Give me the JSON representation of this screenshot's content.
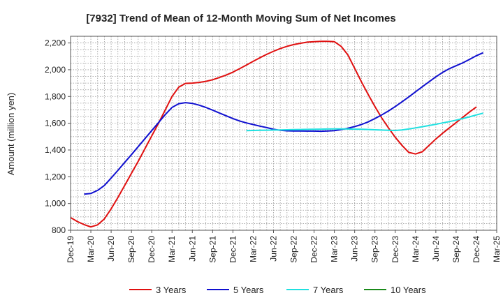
{
  "chart_data": {
    "type": "line",
    "title": "[7932]  Trend of Mean of 12-Month Moving Sum of Net Incomes",
    "xlabel": "",
    "ylabel": "Amount (million yen)",
    "ylim": [
      800,
      2250
    ],
    "yticks": [
      800,
      1000,
      1200,
      1400,
      1600,
      1800,
      2000,
      2200
    ],
    "ytick_labels": [
      "800",
      "1,000",
      "1,200",
      "1,400",
      "1,600",
      "1,800",
      "2,000",
      "2,200"
    ],
    "xtick_labels": [
      "Dec-19",
      "Mar-20",
      "Jun-20",
      "Sep-20",
      "Dec-20",
      "Mar-21",
      "Jun-21",
      "Sep-21",
      "Dec-21",
      "Mar-22",
      "Jun-22",
      "Sep-22",
      "Dec-22",
      "Mar-23",
      "Jun-23",
      "Sep-23",
      "Dec-23",
      "Mar-24",
      "Jun-24",
      "Sep-24",
      "Dec-24",
      "Mar-25"
    ],
    "grid": true,
    "legend_position": "bottom",
    "series": [
      {
        "name": "3 Years",
        "color": "#e01010",
        "points": [
          [
            "Dec-19",
            895
          ],
          [
            "Jan-20",
            865
          ],
          [
            "Feb-20",
            842
          ],
          [
            "Mar-20",
            825
          ],
          [
            "Apr-20",
            840
          ],
          [
            "May-20",
            885
          ],
          [
            "Jun-20",
            960
          ],
          [
            "Jul-20",
            1045
          ],
          [
            "Aug-20",
            1135
          ],
          [
            "Sep-20",
            1225
          ],
          [
            "Oct-20",
            1315
          ],
          [
            "Nov-20",
            1410
          ],
          [
            "Dec-20",
            1505
          ],
          [
            "Jan-21",
            1600
          ],
          [
            "Feb-21",
            1700
          ],
          [
            "Mar-21",
            1800
          ],
          [
            "Apr-21",
            1870
          ],
          [
            "May-21",
            1898
          ],
          [
            "Jun-21",
            1900
          ],
          [
            "Jul-21",
            1905
          ],
          [
            "Aug-21",
            1913
          ],
          [
            "Sep-21",
            1925
          ],
          [
            "Oct-21",
            1942
          ],
          [
            "Nov-21",
            1960
          ],
          [
            "Dec-21",
            1982
          ],
          [
            "Jan-22",
            2008
          ],
          [
            "Feb-22",
            2035
          ],
          [
            "Mar-22",
            2063
          ],
          [
            "Apr-22",
            2090
          ],
          [
            "May-22",
            2115
          ],
          [
            "Jun-22",
            2138
          ],
          [
            "Jul-22",
            2158
          ],
          [
            "Aug-22",
            2175
          ],
          [
            "Sep-22",
            2188
          ],
          [
            "Oct-22",
            2198
          ],
          [
            "Nov-22",
            2206
          ],
          [
            "Dec-22",
            2210
          ],
          [
            "Jan-23",
            2212
          ],
          [
            "Feb-23",
            2212
          ],
          [
            "Mar-23",
            2210
          ],
          [
            "Apr-23",
            2175
          ],
          [
            "May-23",
            2110
          ],
          [
            "Jun-23",
            2010
          ],
          [
            "Jul-23",
            1910
          ],
          [
            "Aug-23",
            1815
          ],
          [
            "Sep-23",
            1725
          ],
          [
            "Oct-23",
            1640
          ],
          [
            "Nov-23",
            1565
          ],
          [
            "Dec-23",
            1495
          ],
          [
            "Jan-24",
            1435
          ],
          [
            "Feb-24",
            1382
          ],
          [
            "Mar-24",
            1370
          ],
          [
            "Apr-24",
            1387
          ],
          [
            "May-24",
            1435
          ],
          [
            "Jun-24",
            1482
          ],
          [
            "Jul-24",
            1525
          ],
          [
            "Aug-24",
            1565
          ],
          [
            "Sep-24",
            1605
          ],
          [
            "Oct-24",
            1645
          ],
          [
            "Nov-24",
            1685
          ],
          [
            "Dec-24",
            1722
          ]
        ]
      },
      {
        "name": "5 Years",
        "color": "#1010d0",
        "points": [
          [
            "Feb-20",
            1070
          ],
          [
            "Mar-20",
            1075
          ],
          [
            "Apr-20",
            1098
          ],
          [
            "May-20",
            1135
          ],
          [
            "Jun-20",
            1190
          ],
          [
            "Jul-20",
            1248
          ],
          [
            "Aug-20",
            1307
          ],
          [
            "Sep-20",
            1365
          ],
          [
            "Oct-20",
            1425
          ],
          [
            "Nov-20",
            1485
          ],
          [
            "Dec-20",
            1545
          ],
          [
            "Jan-21",
            1605
          ],
          [
            "Feb-21",
            1665
          ],
          [
            "Mar-21",
            1718
          ],
          [
            "Apr-21",
            1746
          ],
          [
            "May-21",
            1754
          ],
          [
            "Jun-21",
            1748
          ],
          [
            "Jul-21",
            1735
          ],
          [
            "Aug-21",
            1718
          ],
          [
            "Sep-21",
            1698
          ],
          [
            "Oct-21",
            1677
          ],
          [
            "Nov-21",
            1656
          ],
          [
            "Dec-21",
            1635
          ],
          [
            "Jan-22",
            1617
          ],
          [
            "Feb-22",
            1602
          ],
          [
            "Mar-22",
            1590
          ],
          [
            "Apr-22",
            1578
          ],
          [
            "May-22",
            1567
          ],
          [
            "Jun-22",
            1555
          ],
          [
            "Jul-22",
            1547
          ],
          [
            "Aug-22",
            1543
          ],
          [
            "Sep-22",
            1542
          ],
          [
            "Oct-22",
            1542
          ],
          [
            "Nov-22",
            1541
          ],
          [
            "Dec-22",
            1541
          ],
          [
            "Jan-23",
            1540
          ],
          [
            "Feb-23",
            1542
          ],
          [
            "Mar-23",
            1545
          ],
          [
            "Apr-23",
            1552
          ],
          [
            "May-23",
            1562
          ],
          [
            "Jun-23",
            1575
          ],
          [
            "Jul-23",
            1590
          ],
          [
            "Aug-23",
            1610
          ],
          [
            "Sep-23",
            1635
          ],
          [
            "Oct-23",
            1662
          ],
          [
            "Nov-23",
            1692
          ],
          [
            "Dec-23",
            1725
          ],
          [
            "Jan-24",
            1760
          ],
          [
            "Feb-24",
            1797
          ],
          [
            "Mar-24",
            1835
          ],
          [
            "Apr-24",
            1873
          ],
          [
            "May-24",
            1910
          ],
          [
            "Jun-24",
            1947
          ],
          [
            "Jul-24",
            1980
          ],
          [
            "Aug-24",
            2008
          ],
          [
            "Sep-24",
            2030
          ],
          [
            "Oct-24",
            2052
          ],
          [
            "Nov-24",
            2078
          ],
          [
            "Dec-24",
            2105
          ],
          [
            "Jan-25",
            2127
          ]
        ]
      },
      {
        "name": "7 Years",
        "color": "#20e0e0",
        "points": [
          [
            "Feb-22",
            1545
          ],
          [
            "Mar-22",
            1546
          ],
          [
            "Apr-22",
            1547
          ],
          [
            "May-22",
            1548
          ],
          [
            "Jun-22",
            1549
          ],
          [
            "Jul-22",
            1550
          ],
          [
            "Aug-22",
            1551
          ],
          [
            "Sep-22",
            1552
          ],
          [
            "Oct-22",
            1553
          ],
          [
            "Nov-22",
            1554
          ],
          [
            "Dec-22",
            1555
          ],
          [
            "Jan-23",
            1556
          ],
          [
            "Feb-23",
            1557
          ],
          [
            "Mar-23",
            1558
          ],
          [
            "Apr-23",
            1558
          ],
          [
            "May-23",
            1557
          ],
          [
            "Jun-23",
            1556
          ],
          [
            "Jul-23",
            1555
          ],
          [
            "Aug-23",
            1553
          ],
          [
            "Sep-23",
            1551
          ],
          [
            "Oct-23",
            1549
          ],
          [
            "Nov-23",
            1547
          ],
          [
            "Dec-23",
            1546
          ],
          [
            "Jan-24",
            1550
          ],
          [
            "Feb-24",
            1557
          ],
          [
            "Mar-24",
            1565
          ],
          [
            "Apr-24",
            1574
          ],
          [
            "May-24",
            1583
          ],
          [
            "Jun-24",
            1592
          ],
          [
            "Jul-24",
            1602
          ],
          [
            "Aug-24",
            1612
          ],
          [
            "Sep-24",
            1623
          ],
          [
            "Oct-24",
            1635
          ],
          [
            "Nov-24",
            1648
          ],
          [
            "Dec-24",
            1662
          ],
          [
            "Jan-25",
            1675
          ]
        ]
      },
      {
        "name": "10 Years",
        "color": "#1a8a1a",
        "points": []
      }
    ]
  }
}
